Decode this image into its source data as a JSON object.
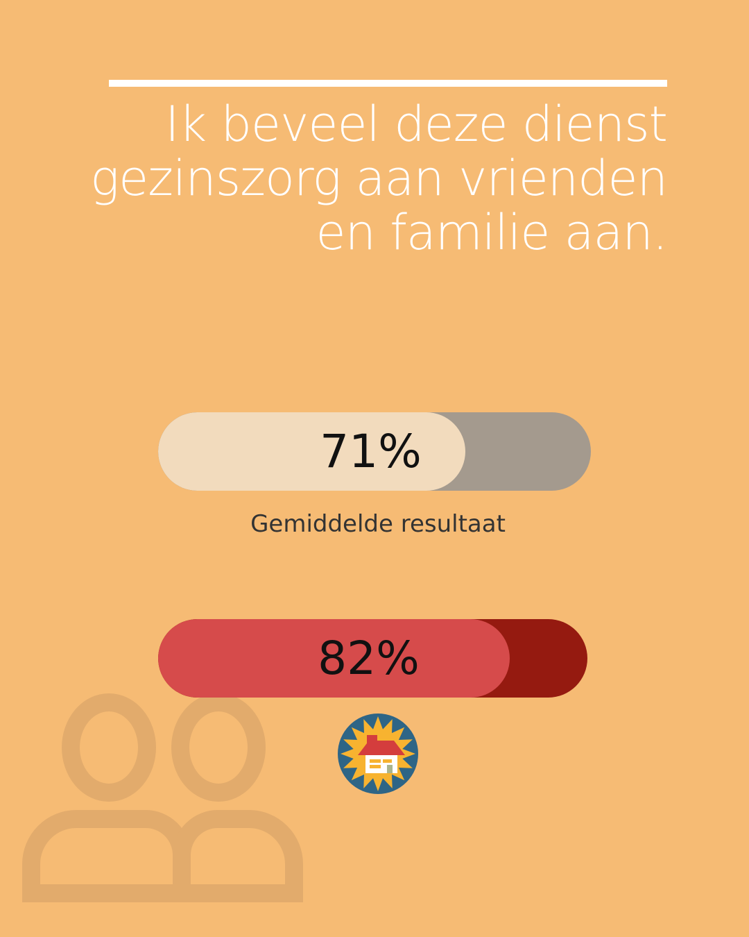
{
  "title": "Ik beveel deze dienst gezinszorg aan vrienden en familie aan.",
  "bars": [
    {
      "value": 71,
      "label": "71%",
      "fill_color": "#f2dbbd",
      "track_color": "#a49a8e"
    },
    {
      "value": 82,
      "label": "82%",
      "fill_color": "#d64b4b",
      "track_color": "#951a10"
    }
  ],
  "average_label": "Gemiddelde resultaat",
  "icons": {
    "background": "people-icon",
    "logo": "sun-house-logo"
  },
  "colors": {
    "background": "#f6bb74",
    "logo_blue": "#2e6586",
    "logo_sun": "#f7b330",
    "logo_roof": "#d43d3d"
  }
}
